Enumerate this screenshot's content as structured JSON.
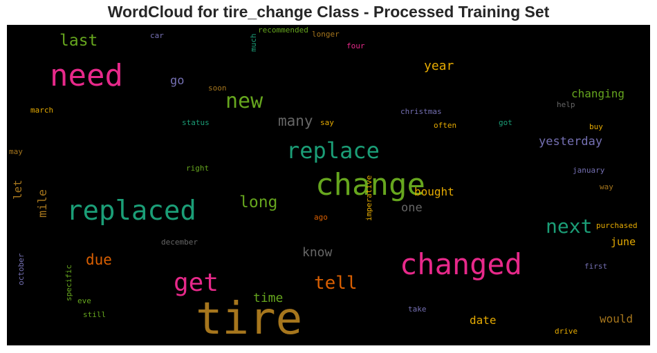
{
  "chart_data": {
    "type": "wordcloud",
    "title": "WordCloud for tire_change Class - Processed Training Set",
    "background": "#000000",
    "palette": {
      "green": "#1b9e77",
      "orange": "#d95f02",
      "purple": "#7570b3",
      "pink": "#e7298a",
      "lime": "#66a61e",
      "gold": "#e6ab02",
      "brown": "#a6761d",
      "gray": "#666666"
    },
    "words": [
      {
        "text": "tire",
        "color": "brown"
      },
      {
        "text": "change",
        "color": "lime"
      },
      {
        "text": "changed",
        "color": "pink"
      },
      {
        "text": "replaced",
        "color": "green"
      },
      {
        "text": "need",
        "color": "pink"
      },
      {
        "text": "get",
        "color": "pink"
      },
      {
        "text": "replace",
        "color": "green"
      },
      {
        "text": "new",
        "color": "lime"
      },
      {
        "text": "next",
        "color": "green"
      },
      {
        "text": "tell",
        "color": "orange"
      },
      {
        "text": "last",
        "color": "lime"
      },
      {
        "text": "long",
        "color": "lime"
      },
      {
        "text": "many",
        "color": "gray"
      },
      {
        "text": "due",
        "color": "orange"
      },
      {
        "text": "know",
        "color": "gray"
      },
      {
        "text": "time",
        "color": "lime"
      },
      {
        "text": "yesterday",
        "color": "purple"
      },
      {
        "text": "changing",
        "color": "lime"
      },
      {
        "text": "year",
        "color": "gold"
      },
      {
        "text": "would",
        "color": "brown"
      },
      {
        "text": "bought",
        "color": "gold"
      },
      {
        "text": "date",
        "color": "gold"
      },
      {
        "text": "june",
        "color": "gold"
      },
      {
        "text": "one",
        "color": "gray"
      },
      {
        "text": "mile",
        "color": "brown"
      },
      {
        "text": "let",
        "color": "brown"
      },
      {
        "text": "go",
        "color": "purple"
      },
      {
        "text": "imperative",
        "color": "gold"
      },
      {
        "text": "christmas",
        "color": "purple"
      },
      {
        "text": "help",
        "color": "gray"
      },
      {
        "text": "buy",
        "color": "gold"
      },
      {
        "text": "january",
        "color": "purple"
      },
      {
        "text": "way",
        "color": "brown"
      },
      {
        "text": "purchased",
        "color": "gold"
      },
      {
        "text": "first",
        "color": "purple"
      },
      {
        "text": "drive",
        "color": "gold"
      },
      {
        "text": "take",
        "color": "purple"
      },
      {
        "text": "status",
        "color": "green"
      },
      {
        "text": "say",
        "color": "gold"
      },
      {
        "text": "often",
        "color": "gold"
      },
      {
        "text": "got",
        "color": "green"
      },
      {
        "text": "march",
        "color": "gold"
      },
      {
        "text": "soon",
        "color": "brown"
      },
      {
        "text": "may",
        "color": "brown"
      },
      {
        "text": "right",
        "color": "lime"
      },
      {
        "text": "ago",
        "color": "orange"
      },
      {
        "text": "december",
        "color": "gray"
      },
      {
        "text": "eve",
        "color": "lime"
      },
      {
        "text": "still",
        "color": "lime"
      },
      {
        "text": "october",
        "color": "purple"
      },
      {
        "text": "specific",
        "color": "lime"
      },
      {
        "text": "car",
        "color": "purple"
      },
      {
        "text": "recommended",
        "color": "lime"
      },
      {
        "text": "longer",
        "color": "brown"
      },
      {
        "text": "four",
        "color": "pink"
      },
      {
        "text": "much",
        "color": "green"
      }
    ]
  }
}
